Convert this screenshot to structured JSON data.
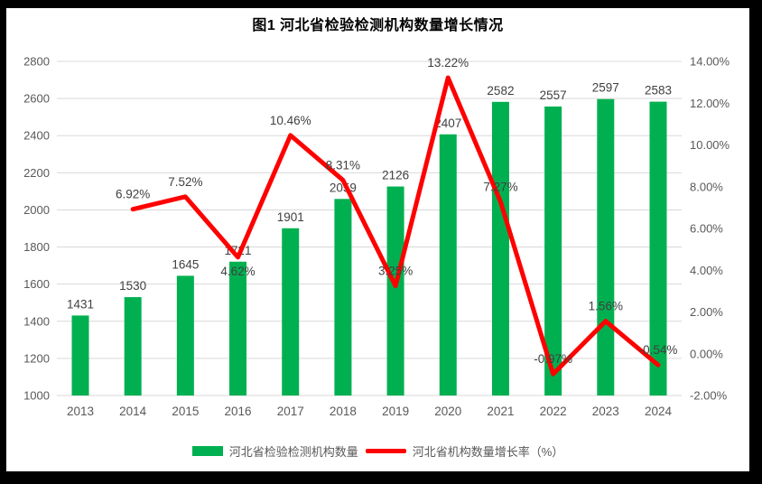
{
  "title": "图1 河北省检验检测机构数量增长情况",
  "legend": {
    "bar_label": "河北省检验检测机构数量",
    "line_label": "河北省机构数量增长率（%）"
  },
  "colors": {
    "bar": "#00B050",
    "line": "#FF0000",
    "grid": "#D9D9D9",
    "tick_text": "#595959",
    "data_label": "#404040",
    "chart_background": "#FFFFFF",
    "outer_frame": "#000000"
  },
  "chart_data": {
    "type": "bar",
    "subtype": "combo_bar_line",
    "title": "图1 河北省检验检测机构数量增长情况",
    "categories": [
      "2013",
      "2014",
      "2015",
      "2016",
      "2017",
      "2018",
      "2019",
      "2020",
      "2021",
      "2022",
      "2023",
      "2024"
    ],
    "series": [
      {
        "name": "河北省检验检测机构数量",
        "type": "bar",
        "axis": "left",
        "color": "#00B050",
        "values": [
          1431,
          1530,
          1645,
          1721,
          1901,
          2059,
          2126,
          2407,
          2582,
          2557,
          2597,
          2583
        ],
        "labels": [
          "1431",
          "1530",
          "1645",
          "1721",
          "1901",
          "2059",
          "2126",
          "2407",
          "2582",
          "2557",
          "2597",
          "2583"
        ]
      },
      {
        "name": "河北省机构数量增长率（%）",
        "type": "line",
        "axis": "right",
        "color": "#FF0000",
        "values": [
          null,
          6.92,
          7.52,
          4.62,
          10.46,
          8.31,
          3.25,
          13.22,
          7.27,
          -0.97,
          1.56,
          -0.54
        ],
        "labels": [
          null,
          "6.92%",
          "7.52%",
          "4.62%",
          "10.46%",
          "8.31%",
          "3.25%",
          "13.22%",
          "7.27%",
          "-0.97%",
          "1.56%",
          "-0.54%"
        ]
      }
    ],
    "left_axis": {
      "min": 1000,
      "max": 2800,
      "step": 200,
      "tick_labels": [
        "2800",
        "2600",
        "2400",
        "2200",
        "2000",
        "1800",
        "1600",
        "1400",
        "1200",
        "1000"
      ]
    },
    "right_axis": {
      "min": -2,
      "max": 14,
      "step": 2,
      "tick_labels": [
        "14.00%",
        "12.00%",
        "10.00%",
        "8.00%",
        "6.00%",
        "4.00%",
        "2.00%",
        "0.00%",
        "-2.00%"
      ]
    },
    "grid": true,
    "legend_position": "bottom"
  }
}
